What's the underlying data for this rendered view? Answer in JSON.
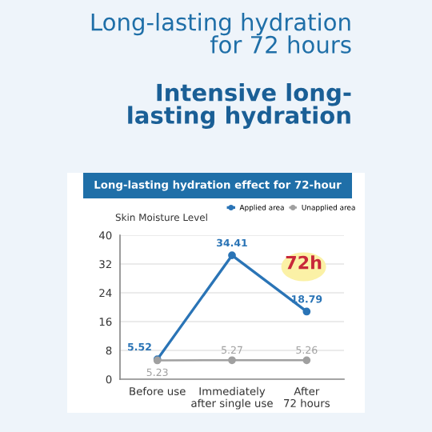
{
  "chart_data": {
    "type": "line",
    "title": "Long-lasting hydration\nfor 72 hours",
    "subtitle": "Intensive long-\nlasting hydration",
    "annotations": [
      "Long-lasting hydration effect for 72-hour",
      "72h"
    ],
    "ylabel": "Skin Moisture Level",
    "categories": [
      "Before use",
      "Immediately\nafter single use",
      "After\n72 hours"
    ],
    "series": [
      {
        "name": "Applied area",
        "color": "#2a74b6",
        "values": [
          5.52,
          34.41,
          18.79
        ]
      },
      {
        "name": "Unapplied area",
        "color": "#a0a0a0",
        "values": [
          5.23,
          5.27,
          5.26
        ]
      }
    ],
    "ylim": [
      0,
      40
    ],
    "yticks": [
      0,
      8,
      16,
      24,
      32,
      40
    ],
    "grid": "y",
    "legend": "top right",
    "marker": "circle",
    "data_labels": true
  }
}
